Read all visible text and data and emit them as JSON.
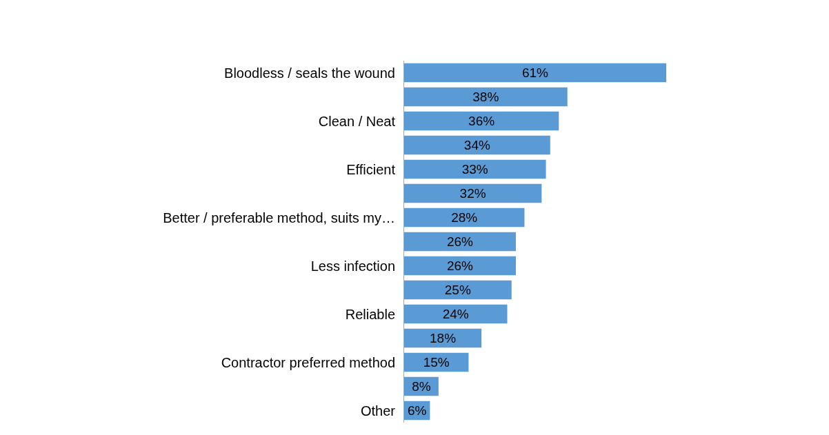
{
  "chart_data": {
    "type": "bar",
    "orientation": "horizontal",
    "categories": [
      "Bloodless / seals the wound",
      null,
      "Clean / Neat",
      null,
      "Efficient",
      null,
      "Better / preferable method, suits my…",
      null,
      "Less infection",
      null,
      "Reliable",
      null,
      "Contractor preferred method",
      null,
      "Other"
    ],
    "values": [
      61,
      38,
      36,
      34,
      33,
      32,
      28,
      26,
      26,
      25,
      24,
      18,
      15,
      8,
      6
    ],
    "value_labels": [
      "61%",
      "38%",
      "36%",
      "34%",
      "33%",
      "32%",
      "28%",
      "26%",
      "26%",
      "25%",
      "24%",
      "18%",
      "15%",
      "8%",
      "6%"
    ],
    "color": "#5b9bd5",
    "legend": false
  }
}
